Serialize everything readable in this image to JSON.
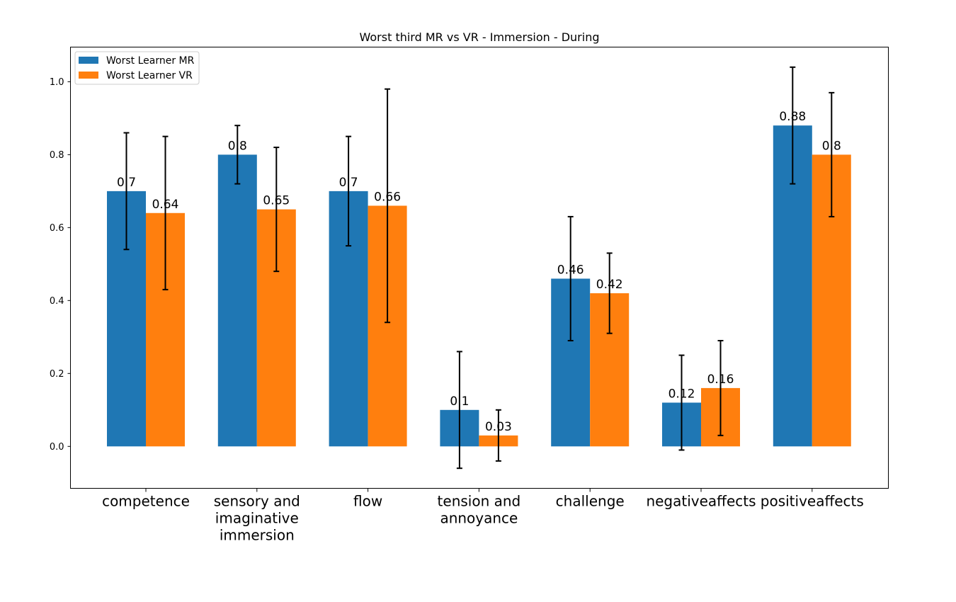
{
  "chart_data": {
    "type": "bar",
    "title": "Worst third MR vs VR - Immersion - During",
    "xlabel": "",
    "ylabel": "",
    "categories": [
      [
        "competence"
      ],
      [
        "sensory and",
        "imaginative",
        "immersion"
      ],
      [
        "flow"
      ],
      [
        "tension and",
        "annoyance"
      ],
      [
        "challenge"
      ],
      [
        "negativeaffects"
      ],
      [
        "positiveaffects"
      ]
    ],
    "series": [
      {
        "name": "Worst Learner MR",
        "color": "#1f77b4",
        "values": [
          0.7,
          0.8,
          0.7,
          0.1,
          0.46,
          0.12,
          0.88
        ],
        "labels": [
          "0.7",
          "0.8",
          "0.7",
          "0.1",
          "0.46",
          "0.12",
          "0.88"
        ],
        "err_low": [
          0.54,
          0.72,
          0.55,
          -0.06,
          0.29,
          -0.01,
          0.72
        ],
        "err_high": [
          0.86,
          0.88,
          0.85,
          0.26,
          0.63,
          0.25,
          1.04
        ]
      },
      {
        "name": "Worst Learner VR",
        "color": "#ff7f0e",
        "values": [
          0.64,
          0.65,
          0.66,
          0.03,
          0.42,
          0.16,
          0.8
        ],
        "labels": [
          "0.64",
          "0.65",
          "0.66",
          "0.03",
          "0.42",
          "0.16",
          "0.8"
        ],
        "err_low": [
          0.43,
          0.48,
          0.34,
          -0.04,
          0.31,
          0.03,
          0.63
        ],
        "err_high": [
          0.85,
          0.82,
          0.98,
          0.1,
          0.53,
          0.29,
          0.97
        ]
      }
    ],
    "ylim": [
      -0.115,
      1.095
    ],
    "yticks": [
      0.0,
      0.2,
      0.4,
      0.6,
      0.8,
      1.0
    ],
    "ytick_labels": [
      "0.0",
      "0.2",
      "0.4",
      "0.6",
      "0.8",
      "1.0"
    ],
    "grid": false,
    "legend_position": "upper-left"
  }
}
